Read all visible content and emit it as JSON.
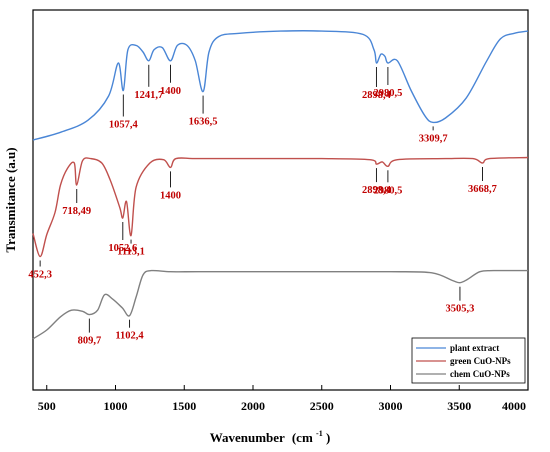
{
  "chart_data": {
    "type": "line",
    "xlabel": "Wavenumber",
    "xlabel_unit": "(cm",
    "xlabel_sup": "-1",
    "xlabel_close": ")",
    "ylabel": "Transmitance (a.u)",
    "xlim": [
      400,
      4000
    ],
    "x_ticks": [
      500,
      1000,
      1500,
      2000,
      2500,
      3000,
      3500,
      4000
    ],
    "y_ticks_shown": false,
    "legend_position": "bottom-right",
    "series": [
      {
        "name": "plant extract",
        "color": "#4a86d6",
        "points": [
          [
            400,
            0.0
          ],
          [
            600,
            0.07
          ],
          [
            800,
            0.18
          ],
          [
            950,
            0.4
          ],
          [
            1020,
            0.7
          ],
          [
            1057,
            0.45
          ],
          [
            1090,
            0.82
          ],
          [
            1150,
            0.86
          ],
          [
            1200,
            0.8
          ],
          [
            1242,
            0.72
          ],
          [
            1280,
            0.82
          ],
          [
            1340,
            0.84
          ],
          [
            1400,
            0.72
          ],
          [
            1450,
            0.86
          ],
          [
            1520,
            0.86
          ],
          [
            1580,
            0.72
          ],
          [
            1637,
            0.44
          ],
          [
            1680,
            0.8
          ],
          [
            1750,
            0.94
          ],
          [
            1900,
            0.97
          ],
          [
            2200,
            0.99
          ],
          [
            2500,
            0.99
          ],
          [
            2800,
            0.96
          ],
          [
            2880,
            0.82
          ],
          [
            2898,
            0.7
          ],
          [
            2930,
            0.78
          ],
          [
            2960,
            0.76
          ],
          [
            2981,
            0.7
          ],
          [
            3050,
            0.72
          ],
          [
            3150,
            0.45
          ],
          [
            3250,
            0.22
          ],
          [
            3310,
            0.16
          ],
          [
            3400,
            0.2
          ],
          [
            3550,
            0.38
          ],
          [
            3700,
            0.72
          ],
          [
            3800,
            0.92
          ],
          [
            3900,
            0.97
          ],
          [
            4000,
            0.99
          ]
        ]
      },
      {
        "name": "green CuO-NPs",
        "color": "#c0504d",
        "points": [
          [
            400,
            -0.34
          ],
          [
            452,
            -0.55
          ],
          [
            500,
            -0.35
          ],
          [
            560,
            -0.15
          ],
          [
            600,
            0.1
          ],
          [
            650,
            0.25
          ],
          [
            700,
            0.3
          ],
          [
            718,
            0.1
          ],
          [
            760,
            0.32
          ],
          [
            820,
            0.34
          ],
          [
            900,
            0.3
          ],
          [
            960,
            0.15
          ],
          [
            1030,
            -0.1
          ],
          [
            1053,
            -0.2
          ],
          [
            1080,
            -0.05
          ],
          [
            1113,
            -0.36
          ],
          [
            1150,
            0.08
          ],
          [
            1250,
            0.3
          ],
          [
            1350,
            0.33
          ],
          [
            1400,
            0.26
          ],
          [
            1440,
            0.34
          ],
          [
            1600,
            0.34
          ],
          [
            2000,
            0.34
          ],
          [
            2500,
            0.34
          ],
          [
            2850,
            0.33
          ],
          [
            2898,
            0.29
          ],
          [
            2940,
            0.31
          ],
          [
            2981,
            0.27
          ],
          [
            3050,
            0.33
          ],
          [
            3400,
            0.34
          ],
          [
            3600,
            0.34
          ],
          [
            3669,
            0.3
          ],
          [
            3720,
            0.34
          ],
          [
            4000,
            0.35
          ]
        ]
      },
      {
        "name": "chem CuO-NPs",
        "color": "#808080",
        "points": [
          [
            400,
            -0.98
          ],
          [
            500,
            -0.9
          ],
          [
            600,
            -0.78
          ],
          [
            680,
            -0.72
          ],
          [
            760,
            -0.73
          ],
          [
            810,
            -0.76
          ],
          [
            870,
            -0.72
          ],
          [
            920,
            -0.58
          ],
          [
            980,
            -0.62
          ],
          [
            1050,
            -0.7
          ],
          [
            1102,
            -0.77
          ],
          [
            1150,
            -0.6
          ],
          [
            1200,
            -0.4
          ],
          [
            1260,
            -0.36
          ],
          [
            1400,
            -0.37
          ],
          [
            1600,
            -0.37
          ],
          [
            2000,
            -0.37
          ],
          [
            2500,
            -0.37
          ],
          [
            3000,
            -0.37
          ],
          [
            3300,
            -0.38
          ],
          [
            3450,
            -0.45
          ],
          [
            3505,
            -0.47
          ],
          [
            3560,
            -0.44
          ],
          [
            3650,
            -0.37
          ],
          [
            3750,
            -0.36
          ],
          [
            4000,
            -0.36
          ]
        ]
      }
    ],
    "annotations": [
      {
        "text": "1057,4",
        "x": 1057,
        "series": 0
      },
      {
        "text": "1241,7",
        "x": 1242,
        "series": 0
      },
      {
        "text": "1400",
        "x": 1400,
        "series": 0
      },
      {
        "text": "1636,5",
        "x": 1637,
        "series": 0
      },
      {
        "text": "2898,4",
        "x": 2898,
        "series": 0
      },
      {
        "text": "2980,5",
        "x": 2981,
        "series": 0
      },
      {
        "text": "3309,7",
        "x": 3310,
        "series": 0
      },
      {
        "text": "718,49",
        "x": 718,
        "series": 1
      },
      {
        "text": "1400",
        "x": 1400,
        "series": 1
      },
      {
        "text": "2898,4",
        "x": 2898,
        "series": 1
      },
      {
        "text": "2980,5",
        "x": 2981,
        "series": 1
      },
      {
        "text": "3668,7",
        "x": 3669,
        "series": 1
      },
      {
        "text": "1052,6",
        "x": 1053,
        "series": 1
      },
      {
        "text": "1113,1",
        "x": 1113,
        "series": 1
      },
      {
        "text": "452,3",
        "x": 452,
        "series": 1
      },
      {
        "text": "3505,3",
        "x": 3505,
        "series": 2
      },
      {
        "text": "809,7",
        "x": 810,
        "series": 2
      },
      {
        "text": "1102,4",
        "x": 1102,
        "series": 2
      }
    ]
  }
}
